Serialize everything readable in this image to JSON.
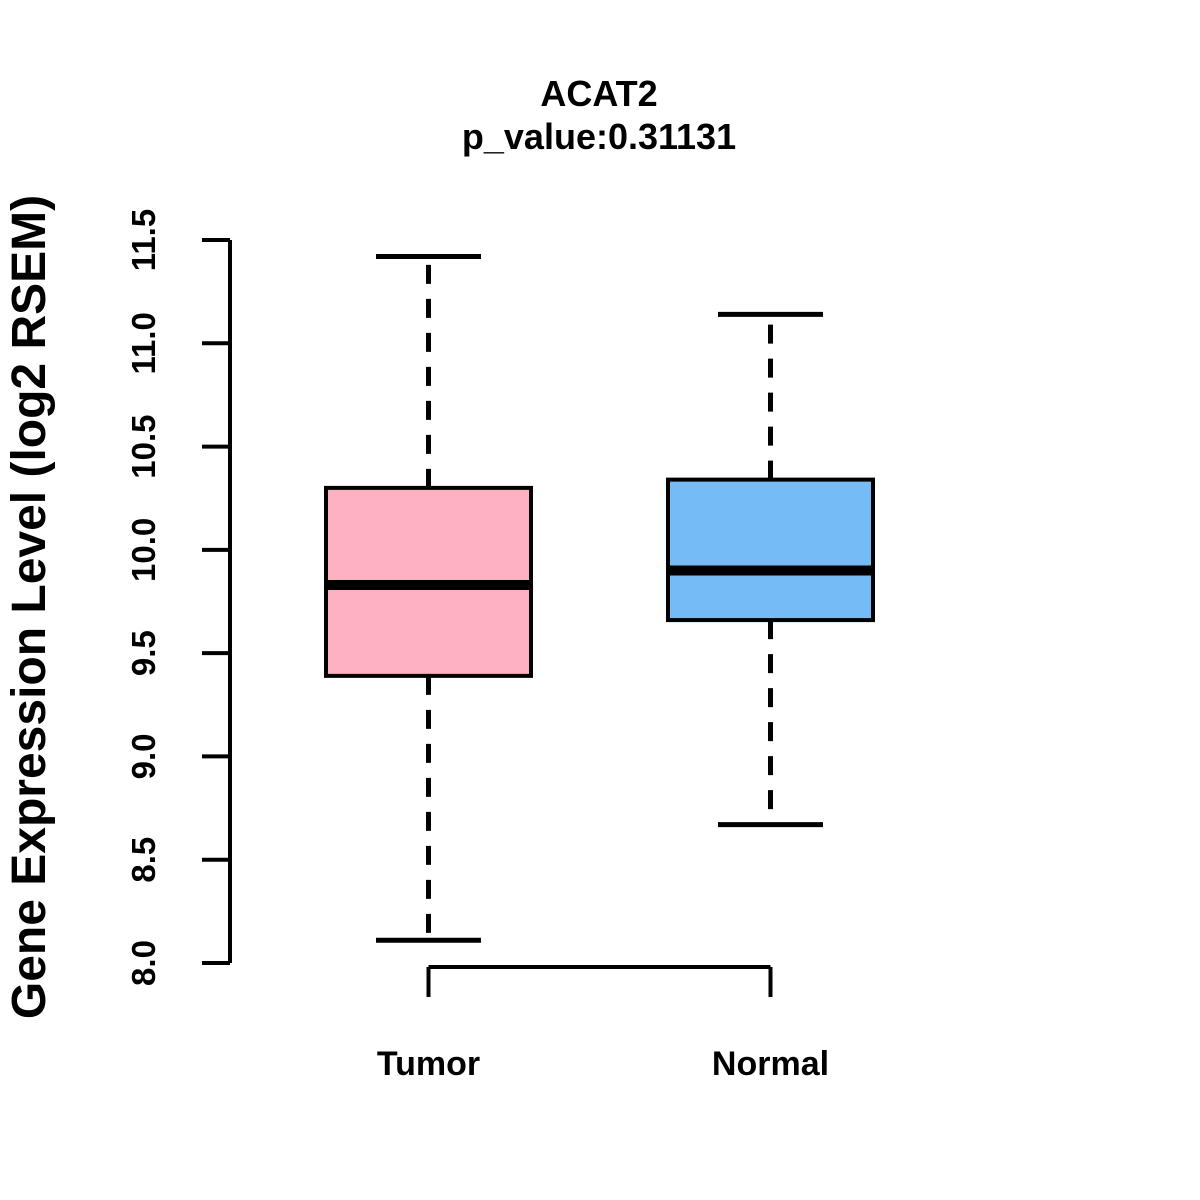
{
  "chart_data": {
    "type": "boxplot",
    "title": "ACAT2",
    "subtitle": "p_value:0.31131",
    "ylabel": "Gene Expression Level (log2 RSEM)",
    "categories": [
      "Tumor",
      "Normal"
    ],
    "ylim": [
      8.0,
      11.5
    ],
    "yticks": [
      8.0,
      8.5,
      9.0,
      9.5,
      10.0,
      10.5,
      11.0,
      11.5
    ],
    "ytick_label_format": "one-decimal",
    "grid": false,
    "legend": "none",
    "series": [
      {
        "name": "Tumor",
        "box_color": "#FDB1C2",
        "whisker_low": 8.11,
        "q1": 9.39,
        "median": 9.83,
        "q3": 10.3,
        "whisker_high": 11.42,
        "outliers": []
      },
      {
        "name": "Normal",
        "box_color": "#74BCF3",
        "whisker_low": 8.67,
        "q1": 9.66,
        "median": 9.9,
        "q3": 10.34,
        "whisker_high": 11.14,
        "outliers": []
      }
    ],
    "line_color": "#000000",
    "whisker_style": "dashed"
  }
}
